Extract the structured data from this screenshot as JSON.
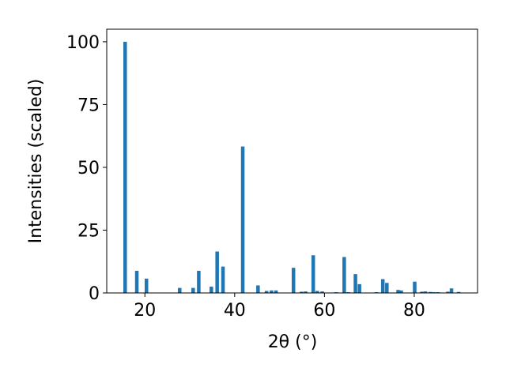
{
  "chart_data": {
    "type": "bar",
    "xlabel": "2θ (°)",
    "ylabel": "Intensities (scaled)",
    "color": "#1f77b4",
    "x": [
      15.6,
      18.2,
      20.35,
      27.75,
      30.75,
      32.0,
      34.8,
      36.1,
      37.4,
      41.8,
      45.2,
      47.1,
      48.2,
      49.2,
      53.1,
      54.9,
      55.8,
      57.5,
      58.4,
      59.5,
      62.6,
      64.4,
      65.3,
      66.9,
      67.8,
      71.6,
      73.0,
      73.9,
      76.4,
      77.1,
      80.1,
      81.7,
      82.5,
      83.6,
      84.4,
      85.3,
      87.5,
      88.3,
      89.9
    ],
    "values": [
      100,
      8.8,
      5.7,
      2,
      2,
      8.8,
      2.5,
      16.5,
      10.5,
      58.3,
      3,
      0.8,
      1,
      1,
      10,
      0.5,
      0.6,
      15,
      0.8,
      0.6,
      0.3,
      14.3,
      0.3,
      7.5,
      3.5,
      0.3,
      5.5,
      4,
      1.2,
      1,
      4.5,
      0.5,
      0.6,
      0.4,
      0.3,
      0.3,
      0.5,
      1.8,
      0.4
    ],
    "xlim": [
      11.5,
      94.1
    ],
    "ylim": [
      0,
      105
    ],
    "xticks": [
      20,
      40,
      60,
      80
    ],
    "yticks": [
      0,
      25,
      50,
      75,
      100
    ]
  }
}
